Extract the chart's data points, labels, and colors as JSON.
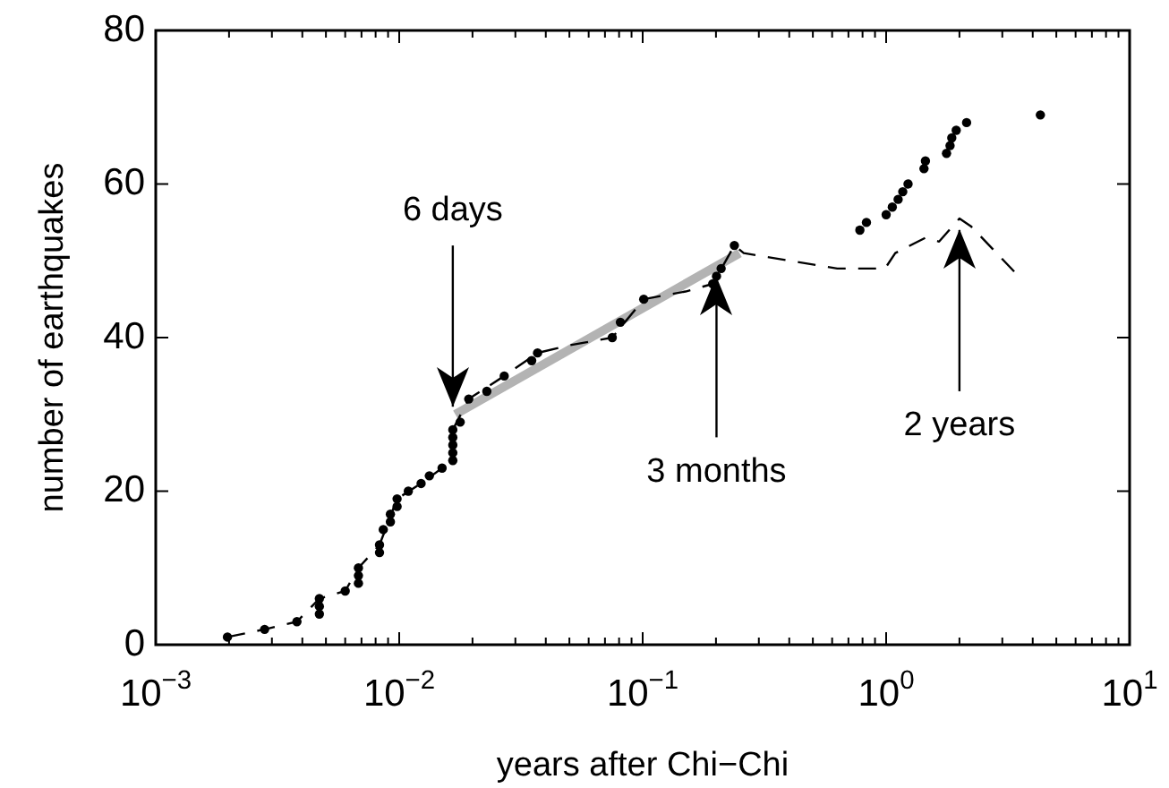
{
  "chart_data": {
    "type": "scatter",
    "xlabel": "years after Chi−Chi",
    "ylabel": "number of earthquakes",
    "log": "x",
    "grid": false,
    "legend": false,
    "xlim": [
      0.001,
      10
    ],
    "ylim": [
      0,
      80
    ],
    "yticks": [
      0,
      20,
      40,
      60,
      80
    ],
    "xticks": [
      {
        "value": 0.001,
        "label": "10$^{−3}$"
      },
      {
        "value": 0.002,
        "label": null
      },
      {
        "value": 0.003,
        "label": null
      },
      {
        "value": 0.004,
        "label": null
      },
      {
        "value": 0.005,
        "label": null
      },
      {
        "value": 0.006,
        "label": null
      },
      {
        "value": 0.007,
        "label": null
      },
      {
        "value": 0.008,
        "label": null
      },
      {
        "value": 0.009,
        "label": null
      },
      {
        "value": 0.01,
        "label": "10$^{−2}$"
      },
      {
        "value": 0.02,
        "label": null
      },
      {
        "value": 0.03,
        "label": null
      },
      {
        "value": 0.04,
        "label": null
      },
      {
        "value": 0.05,
        "label": null
      },
      {
        "value": 0.06,
        "label": null
      },
      {
        "value": 0.07,
        "label": null
      },
      {
        "value": 0.08,
        "label": null
      },
      {
        "value": 0.09,
        "label": null
      },
      {
        "value": 0.1,
        "label": "10$^{−1}$"
      },
      {
        "value": 0.2,
        "label": null
      },
      {
        "value": 0.3,
        "label": null
      },
      {
        "value": 0.4,
        "label": null
      },
      {
        "value": 0.5,
        "label": null
      },
      {
        "value": 0.6,
        "label": null
      },
      {
        "value": 0.7,
        "label": null
      },
      {
        "value": 0.8,
        "label": null
      },
      {
        "value": 0.9,
        "label": null
      },
      {
        "value": 1,
        "label": "10$^{0}$"
      },
      {
        "value": 2,
        "label": null
      },
      {
        "value": 3,
        "label": null
      },
      {
        "value": 4,
        "label": null
      },
      {
        "value": 5,
        "label": null
      },
      {
        "value": 6,
        "label": null
      },
      {
        "value": 7,
        "label": null
      },
      {
        "value": 8,
        "label": null
      },
      {
        "value": 9,
        "label": null
      },
      {
        "value": 10,
        "label": "10$^{1}$"
      }
    ],
    "series": [
      {
        "type": "line",
        "color": "#000000",
        "line_style": "dashed",
        "marker": "none",
        "x": [
          0.00197,
          0.0028,
          0.0038,
          0.0047,
          0.006,
          0.0068,
          0.0083,
          0.0098,
          0.0123,
          0.015,
          0.0166,
          0.0166,
          0.0193,
          0.027,
          0.037,
          0.05,
          0.075,
          0.101,
          0.15,
          0.194,
          0.238,
          0.26,
          0.63,
          0.99,
          1.09,
          1.45,
          1.65,
          2.0,
          2.23,
          3.5
        ],
        "values": [
          1,
          2,
          3,
          6,
          7,
          10,
          13,
          19,
          21,
          23,
          24,
          28,
          32,
          35,
          38,
          39,
          40,
          45,
          46,
          47,
          52,
          51,
          49,
          49,
          51,
          53,
          52.5,
          55.5,
          54.5,
          48
        ]
      },
      {
        "color": "#000000",
        "marker": "circle",
        "x": [
          0.00197,
          0.0028,
          0.0038,
          0.0047,
          0.0047,
          0.0047,
          0.006,
          0.0068,
          0.0068,
          0.0068,
          0.0083,
          0.0083,
          0.0086,
          0.0092,
          0.0092,
          0.0098,
          0.0098,
          0.0109,
          0.0123,
          0.0133,
          0.015,
          0.0166,
          0.0166,
          0.0166,
          0.0166,
          0.0166,
          0.0178,
          0.0193,
          0.0229,
          0.027,
          0.035,
          0.037,
          0.075,
          0.081,
          0.101,
          0.194,
          0.201,
          0.21,
          0.238,
          0.78,
          0.83,
          1.0,
          1.06,
          1.12,
          1.17,
          1.23,
          1.43,
          1.45,
          1.77,
          1.83,
          1.86,
          1.94,
          2.14,
          4.3
        ],
        "values": [
          1,
          2,
          3,
          4,
          5,
          6,
          7,
          8,
          9,
          10,
          12,
          13,
          15,
          16,
          17,
          18,
          19,
          20,
          21,
          22,
          23,
          24,
          25,
          26,
          27,
          28,
          29,
          32,
          33,
          35,
          37,
          38,
          40,
          42,
          45,
          47,
          48,
          49,
          52,
          54,
          55,
          56,
          57,
          58,
          59,
          60,
          62,
          63,
          64,
          65,
          66,
          67,
          68,
          69
        ]
      },
      {
        "type": "line",
        "color": "#b3b3b3",
        "line_style": "solid",
        "marker": "none",
        "x": [
          0.017,
          0.25
        ],
        "values": [
          30,
          51
        ]
      }
    ],
    "annotations": [
      {
        "text": "6 days",
        "x": 0.0166,
        "y": 31
      },
      {
        "text": "3 months",
        "x": 0.201,
        "y": 48
      },
      {
        "text": "2 years",
        "x": 2.0,
        "y": 54
      }
    ]
  }
}
